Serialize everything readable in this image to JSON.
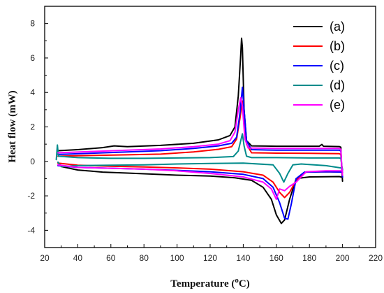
{
  "chart_data": {
    "type": "line",
    "xlabel": "Temperature (",
    "xlabel_sup": "o",
    "xlabel_unit": "C)",
    "ylabel": "Heat flow (mW)",
    "xlim": [
      20,
      220
    ],
    "ylim": [
      -5,
      9
    ],
    "x_ticks": [
      20,
      40,
      60,
      80,
      100,
      120,
      140,
      160,
      180,
      200,
      220
    ],
    "y_ticks": [
      -4,
      -2,
      0,
      2,
      4,
      6,
      8
    ],
    "grid": false,
    "legend_position": "top-right",
    "series": [
      {
        "name": "(a)",
        "color": "#000000",
        "heating": [
          [
            28,
            0.62
          ],
          [
            40,
            0.68
          ],
          [
            55,
            0.8
          ],
          [
            62,
            0.9
          ],
          [
            70,
            0.85
          ],
          [
            90,
            0.93
          ],
          [
            110,
            1.05
          ],
          [
            125,
            1.25
          ],
          [
            132,
            1.5
          ],
          [
            135,
            2.0
          ],
          [
            137,
            3.8
          ],
          [
            138.5,
            6.2
          ],
          [
            139,
            7.15
          ],
          [
            139.5,
            6.6
          ],
          [
            140.5,
            3.0
          ],
          [
            142,
            1.2
          ],
          [
            145,
            0.9
          ],
          [
            160,
            0.88
          ],
          [
            180,
            0.88
          ],
          [
            186,
            0.88
          ],
          [
            187.5,
            0.98
          ],
          [
            188.5,
            0.88
          ],
          [
            198,
            0.86
          ],
          [
            199,
            0.82
          ],
          [
            199.5,
            -0.4
          ],
          [
            200,
            -1.15
          ]
        ],
        "cooling": [
          [
            200,
            -0.92
          ],
          [
            198,
            -0.88
          ],
          [
            180,
            -0.9
          ],
          [
            172,
            -1.0
          ],
          [
            168,
            -2.2
          ],
          [
            165,
            -3.4
          ],
          [
            163,
            -3.6
          ],
          [
            160,
            -3.1
          ],
          [
            157,
            -2.2
          ],
          [
            152,
            -1.5
          ],
          [
            145,
            -1.1
          ],
          [
            135,
            -0.95
          ],
          [
            120,
            -0.85
          ],
          [
            100,
            -0.8
          ],
          [
            80,
            -0.72
          ],
          [
            70,
            -0.68
          ],
          [
            55,
            -0.62
          ],
          [
            40,
            -0.5
          ],
          [
            30,
            -0.3
          ],
          [
            28,
            -0.05
          ]
        ]
      },
      {
        "name": "(b)",
        "color": "#ff0000",
        "heating": [
          [
            28,
            0.3
          ],
          [
            50,
            0.35
          ],
          [
            70,
            0.38
          ],
          [
            90,
            0.42
          ],
          [
            110,
            0.55
          ],
          [
            125,
            0.7
          ],
          [
            133,
            0.85
          ],
          [
            136,
            1.3
          ],
          [
            138,
            2.5
          ],
          [
            139.5,
            3.5
          ],
          [
            140.5,
            2.8
          ],
          [
            142,
            1.0
          ],
          [
            145,
            0.5
          ],
          [
            160,
            0.48
          ],
          [
            180,
            0.47
          ],
          [
            198,
            0.45
          ],
          [
            199,
            0.4
          ],
          [
            199.5,
            -0.3
          ],
          [
            200,
            -0.9
          ]
        ],
        "cooling": [
          [
            200,
            -0.62
          ],
          [
            190,
            -0.6
          ],
          [
            178,
            -0.62
          ],
          [
            172,
            -1.1
          ],
          [
            168,
            -1.8
          ],
          [
            165,
            -2.1
          ],
          [
            162,
            -1.8
          ],
          [
            158,
            -1.2
          ],
          [
            152,
            -0.8
          ],
          [
            140,
            -0.6
          ],
          [
            120,
            -0.45
          ],
          [
            100,
            -0.38
          ],
          [
            80,
            -0.32
          ],
          [
            60,
            -0.28
          ],
          [
            40,
            -0.22
          ],
          [
            28,
            -0.1
          ]
        ]
      },
      {
        "name": "(c)",
        "color": "#0000ff",
        "heating": [
          [
            28,
            0.4
          ],
          [
            50,
            0.48
          ],
          [
            70,
            0.55
          ],
          [
            90,
            0.62
          ],
          [
            110,
            0.75
          ],
          [
            125,
            0.9
          ],
          [
            133,
            1.05
          ],
          [
            136,
            1.4
          ],
          [
            138,
            2.8
          ],
          [
            139.5,
            4.3
          ],
          [
            140.5,
            3.0
          ],
          [
            142,
            1.2
          ],
          [
            145,
            0.68
          ],
          [
            160,
            0.65
          ],
          [
            180,
            0.65
          ],
          [
            198,
            0.65
          ],
          [
            199,
            0.6
          ],
          [
            199.5,
            -0.3
          ],
          [
            200,
            -0.9
          ]
        ],
        "cooling": [
          [
            200,
            -0.62
          ],
          [
            190,
            -0.6
          ],
          [
            177,
            -0.62
          ],
          [
            172,
            -1.0
          ],
          [
            169,
            -2.5
          ],
          [
            167,
            -3.35
          ],
          [
            165,
            -3.3
          ],
          [
            162,
            -2.4
          ],
          [
            158,
            -1.5
          ],
          [
            152,
            -1.0
          ],
          [
            140,
            -0.75
          ],
          [
            120,
            -0.6
          ],
          [
            100,
            -0.52
          ],
          [
            80,
            -0.45
          ],
          [
            60,
            -0.4
          ],
          [
            40,
            -0.35
          ],
          [
            28,
            -0.25
          ]
        ]
      },
      {
        "name": "(d)",
        "color": "#008b8b",
        "heating": [
          [
            27,
            0.1
          ],
          [
            27.7,
            0.95
          ],
          [
            28.3,
            0.3
          ],
          [
            40,
            0.22
          ],
          [
            60,
            0.18
          ],
          [
            80,
            0.18
          ],
          [
            100,
            0.2
          ],
          [
            120,
            0.22
          ],
          [
            134,
            0.28
          ],
          [
            137,
            0.6
          ],
          [
            138.5,
            1.2
          ],
          [
            139.5,
            1.6
          ],
          [
            140.5,
            0.9
          ],
          [
            142,
            0.3
          ],
          [
            145,
            0.22
          ],
          [
            160,
            0.22
          ],
          [
            180,
            0.2
          ],
          [
            198,
            0.2
          ],
          [
            199,
            0.18
          ],
          [
            199.5,
            -0.2
          ],
          [
            200,
            -0.5
          ]
        ],
        "cooling": [
          [
            200,
            -0.45
          ],
          [
            199,
            -0.38
          ],
          [
            190,
            -0.25
          ],
          [
            175,
            -0.15
          ],
          [
            170,
            -0.2
          ],
          [
            167,
            -0.7
          ],
          [
            164.5,
            -1.2
          ],
          [
            162,
            -0.7
          ],
          [
            158,
            -0.2
          ],
          [
            140,
            -0.1
          ],
          [
            120,
            -0.12
          ],
          [
            100,
            -0.15
          ],
          [
            80,
            -0.2
          ],
          [
            60,
            -0.22
          ],
          [
            40,
            -0.25
          ],
          [
            30,
            -0.3
          ],
          [
            28,
            -0.05
          ]
        ]
      },
      {
        "name": "(e)",
        "color": "#ff00ff",
        "heating": [
          [
            28,
            0.5
          ],
          [
            50,
            0.58
          ],
          [
            70,
            0.65
          ],
          [
            90,
            0.72
          ],
          [
            110,
            0.85
          ],
          [
            125,
            1.0
          ],
          [
            132,
            1.2
          ],
          [
            135,
            1.7
          ],
          [
            137,
            3.0
          ],
          [
            138.5,
            3.7
          ],
          [
            139.5,
            3.2
          ],
          [
            141,
            1.3
          ],
          [
            143,
            0.78
          ],
          [
            160,
            0.75
          ],
          [
            180,
            0.75
          ],
          [
            198,
            0.75
          ],
          [
            199,
            0.7
          ],
          [
            199.5,
            -0.2
          ],
          [
            200,
            -0.8
          ]
        ],
        "cooling": [
          [
            200,
            -0.55
          ],
          [
            190,
            -0.55
          ],
          [
            178,
            -0.6
          ],
          [
            172,
            -1.2
          ],
          [
            168,
            -1.45
          ],
          [
            165,
            -1.7
          ],
          [
            162,
            -1.6
          ],
          [
            160,
            -2.2
          ],
          [
            157,
            -1.6
          ],
          [
            152,
            -1.2
          ],
          [
            140,
            -0.9
          ],
          [
            120,
            -0.7
          ],
          [
            100,
            -0.55
          ],
          [
            80,
            -0.45
          ],
          [
            60,
            -0.4
          ],
          [
            40,
            -0.35
          ],
          [
            28,
            -0.2
          ]
        ]
      }
    ]
  }
}
